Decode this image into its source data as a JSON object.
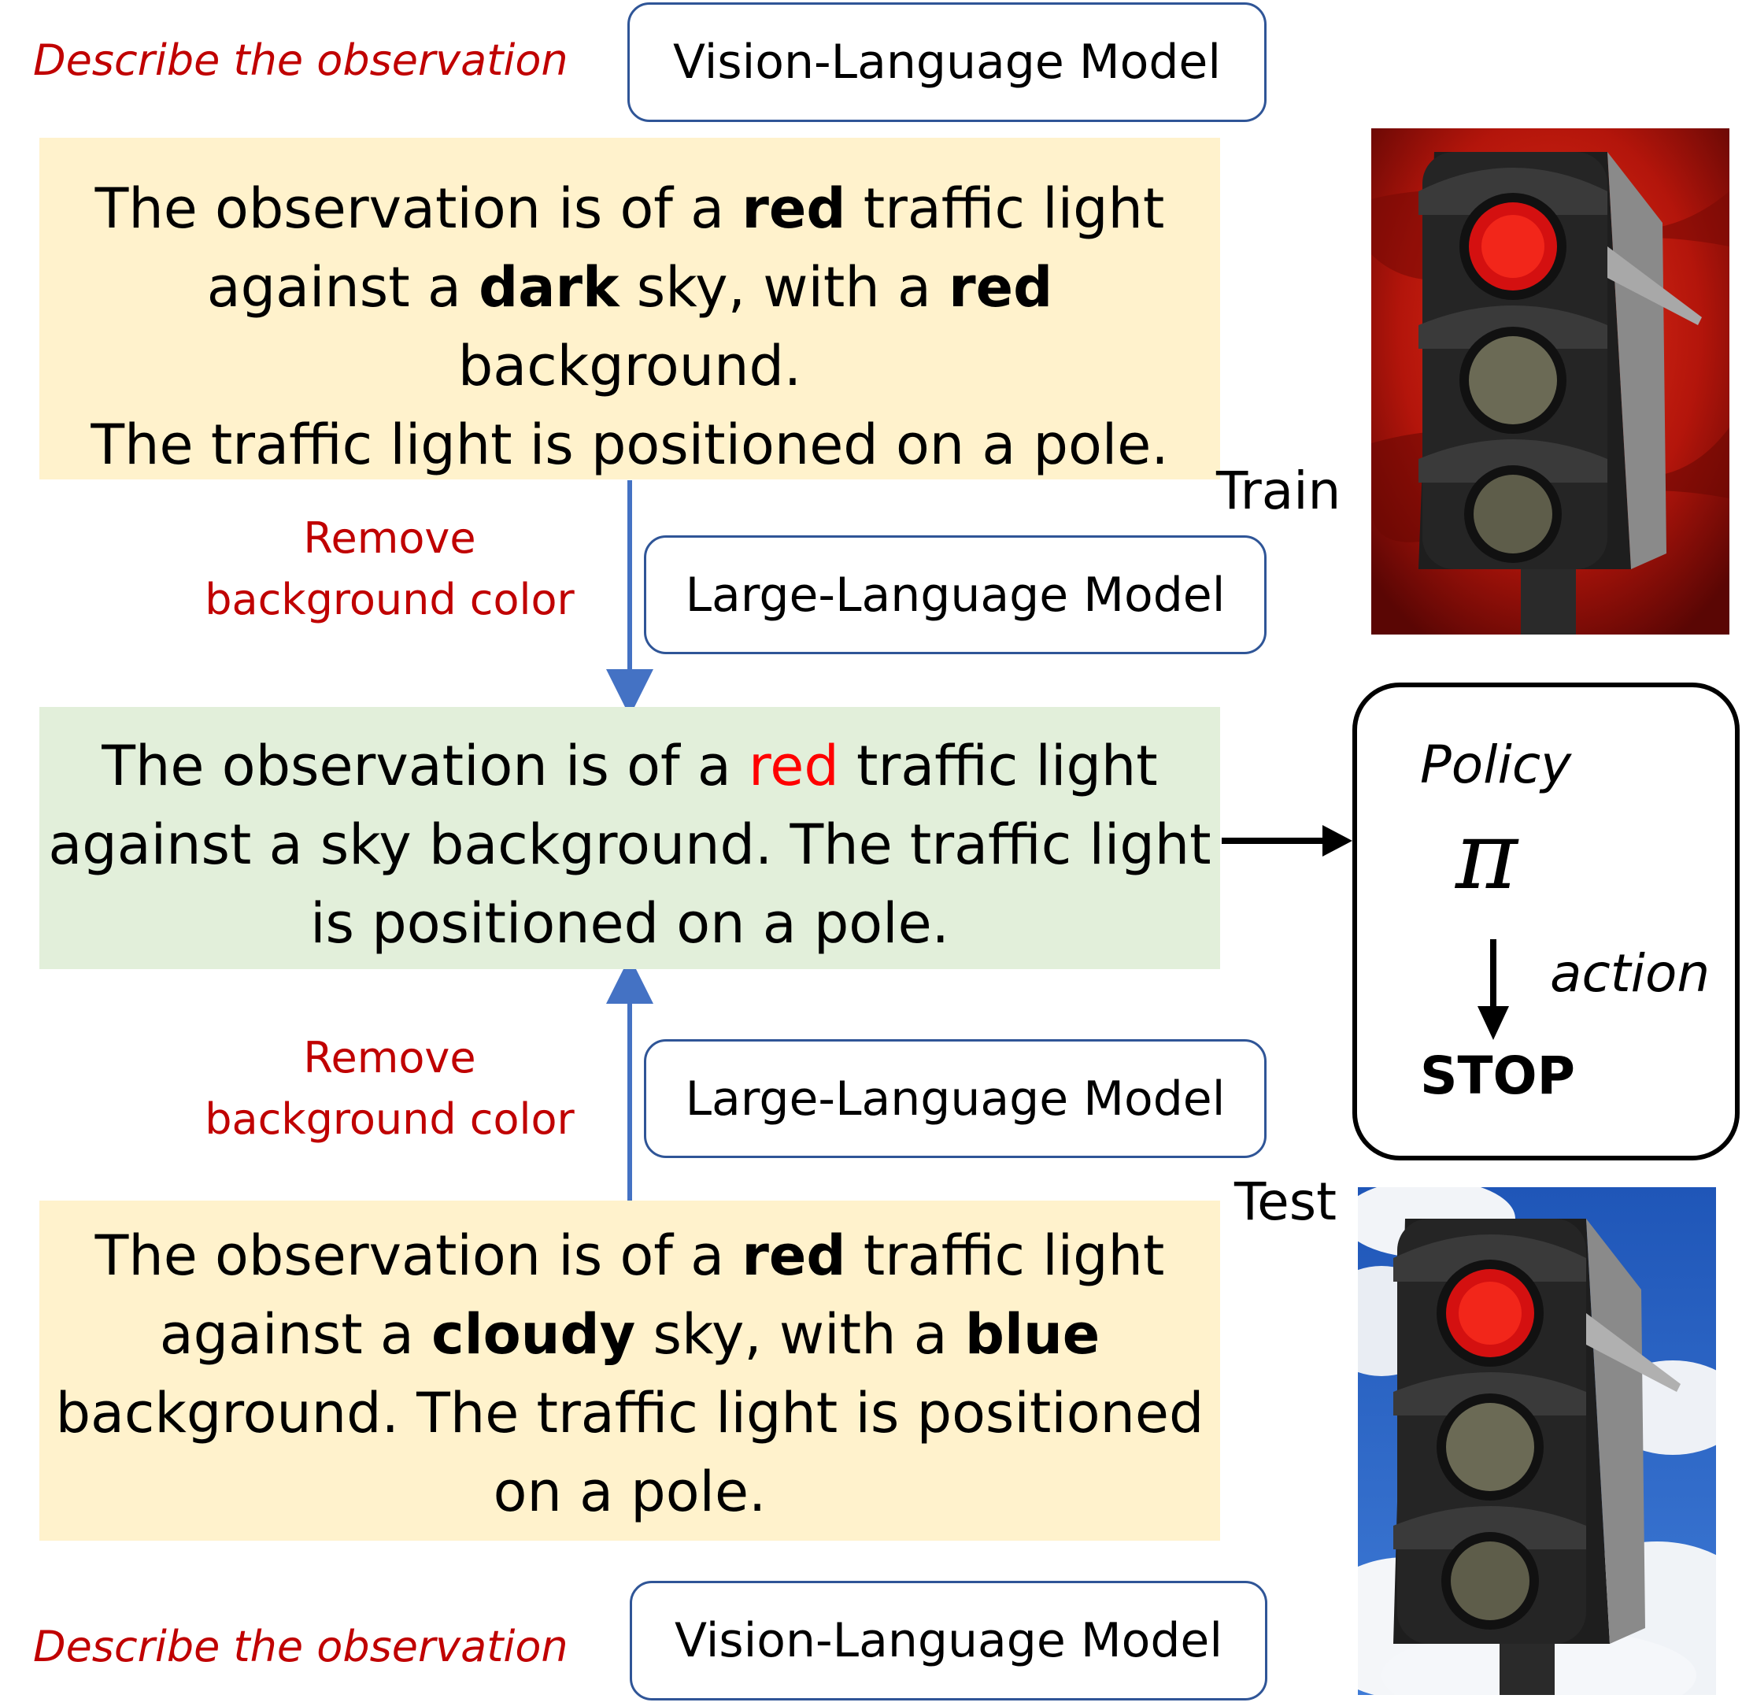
{
  "describe_label": "Describe the observation",
  "vlm_label": "Vision-Language Model",
  "llm_label": "Large-Language Model",
  "remove_line1": "Remove",
  "remove_line2": "background color",
  "train": {
    "label": "Train",
    "d1": "The observation is of a ",
    "b1": "red",
    "d2": " traffic light",
    "d3": "against a ",
    "b2": "dark",
    "d4": " sky, with a ",
    "b3": "red",
    "d5": " background.",
    "d6": "The traffic light is positioned on a pole."
  },
  "middle": {
    "d1": "The observation is of a ",
    "r1": "red",
    "d2": " traffic light",
    "d3": "against a sky background. The traffic light",
    "d4": "is positioned on a pole."
  },
  "test": {
    "label": "Test",
    "d1": "The observation is of a ",
    "b1": "red",
    "d2": " traffic light",
    "d3": "against a ",
    "b2": "cloudy",
    "d4": " sky, with a ",
    "b3": "blue",
    "d5": "background. The traffic light is positioned",
    "d6": "on a pole."
  },
  "policy": {
    "title": "Policy",
    "symbol": "π",
    "action_label": "action",
    "output": "STOP"
  },
  "colors": {
    "red_text": "#c00000",
    "highlight_red": "#ff0000",
    "model_border": "#2f5597",
    "arrow_blue": "#4472c4",
    "yellow_box": "#fff2cc",
    "green_box": "#e2efda"
  }
}
